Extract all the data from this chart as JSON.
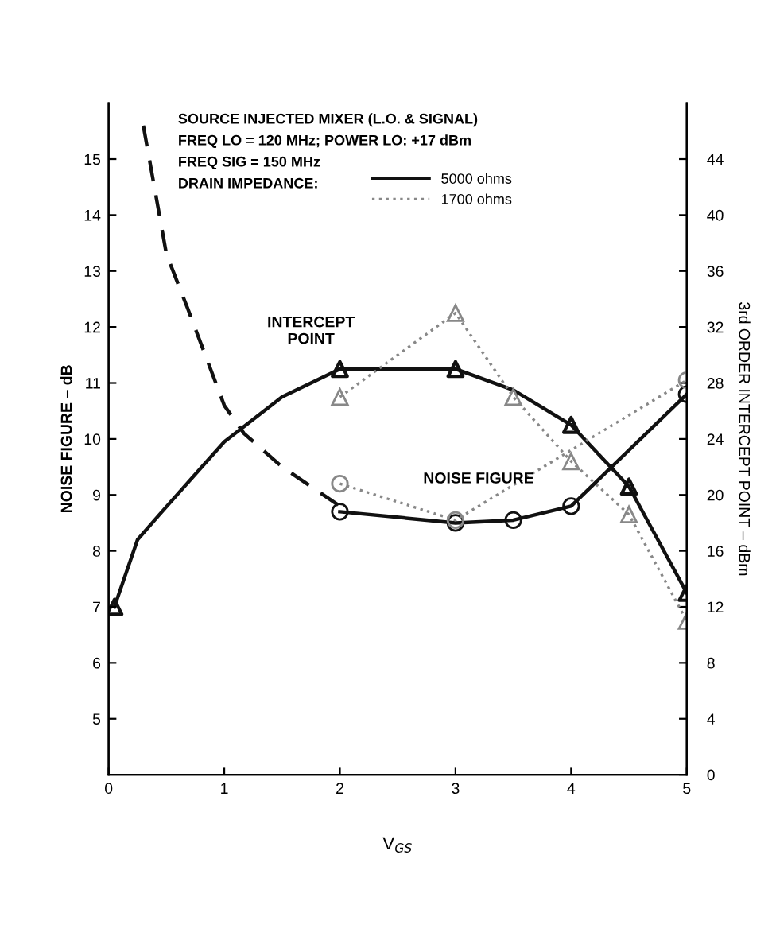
{
  "chart_data": {
    "type": "line",
    "xlabel": "V$_{GS}$",
    "ylabel": "NOISE FIGURE – dB",
    "y2label": "3rd ORDER INTERCEPT POINT – dBm",
    "xlim": [
      0,
      5
    ],
    "xticks": [
      0,
      1,
      2,
      3,
      4,
      5
    ],
    "ylim": [
      4,
      16
    ],
    "yticks": [
      5,
      6,
      7,
      8,
      9,
      10,
      11,
      12,
      13,
      14,
      15
    ],
    "y2lim": [
      0,
      48
    ],
    "y2ticks": [
      0,
      4,
      8,
      12,
      16,
      20,
      24,
      28,
      32,
      36,
      40,
      44
    ],
    "grid": false,
    "legend": "top right",
    "annotations": [
      "SOURCE INJECTED MIXER (L.O. & SIGNAL)",
      "FREQ LO = 120 MHz; POWER LO: +17 dBm",
      "FREQ SIG = 150 MHz",
      "DRAIN IMPEDANCE:",
      "INTERCEPT\nPOINT",
      "NOISE FIGURE"
    ],
    "series": [
      {
        "axis": "y",
        "color": "#111111",
        "line_style": "dashed",
        "marker": "none",
        "x": [
          0.3,
          0.5,
          0.68,
          1,
          1.17,
          1.5,
          2
        ],
        "values": [
          15.6,
          13.3,
          12.35,
          10.6,
          10.1,
          9.5,
          8.8
        ]
      },
      {
        "axis": "y",
        "color": "#111111",
        "line_style": "solid",
        "marker": "circle",
        "x": [
          2,
          3,
          3.5,
          4,
          5
        ],
        "values": [
          8.7,
          8.5,
          8.55,
          8.8,
          10.8
        ]
      },
      {
        "axis": "y",
        "color": "#888888",
        "line_style": "dotted",
        "marker": "circle",
        "x": [
          2,
          3,
          5
        ],
        "values": [
          9.2,
          8.55,
          11.05
        ]
      },
      {
        "axis": "y2",
        "name": "5000 ohms",
        "color": "#111111",
        "line_style": "solid",
        "marker": "none",
        "x": [
          0.05,
          0.25,
          0.44,
          1,
          1.5,
          2,
          3,
          3.5,
          4,
          4.5,
          5
        ],
        "values": [
          12,
          16.8,
          18.6,
          23.8,
          27,
          29,
          29,
          27.5,
          25,
          20.6,
          13
        ]
      },
      {
        "type": "scatter",
        "axis": "y2",
        "color": "#111111",
        "marker": "triangle",
        "x": [
          0.05,
          2,
          3,
          4,
          4.5,
          5
        ],
        "values": [
          12,
          29,
          29,
          25,
          20.6,
          13
        ]
      },
      {
        "axis": "y2",
        "name": "1700 ohms",
        "color": "#888888",
        "line_style": "dotted",
        "marker": "triangle",
        "x": [
          2,
          3,
          3.5,
          4,
          4.5,
          5
        ],
        "values": [
          27,
          33,
          27,
          22.4,
          18.6,
          11
        ]
      }
    ]
  }
}
